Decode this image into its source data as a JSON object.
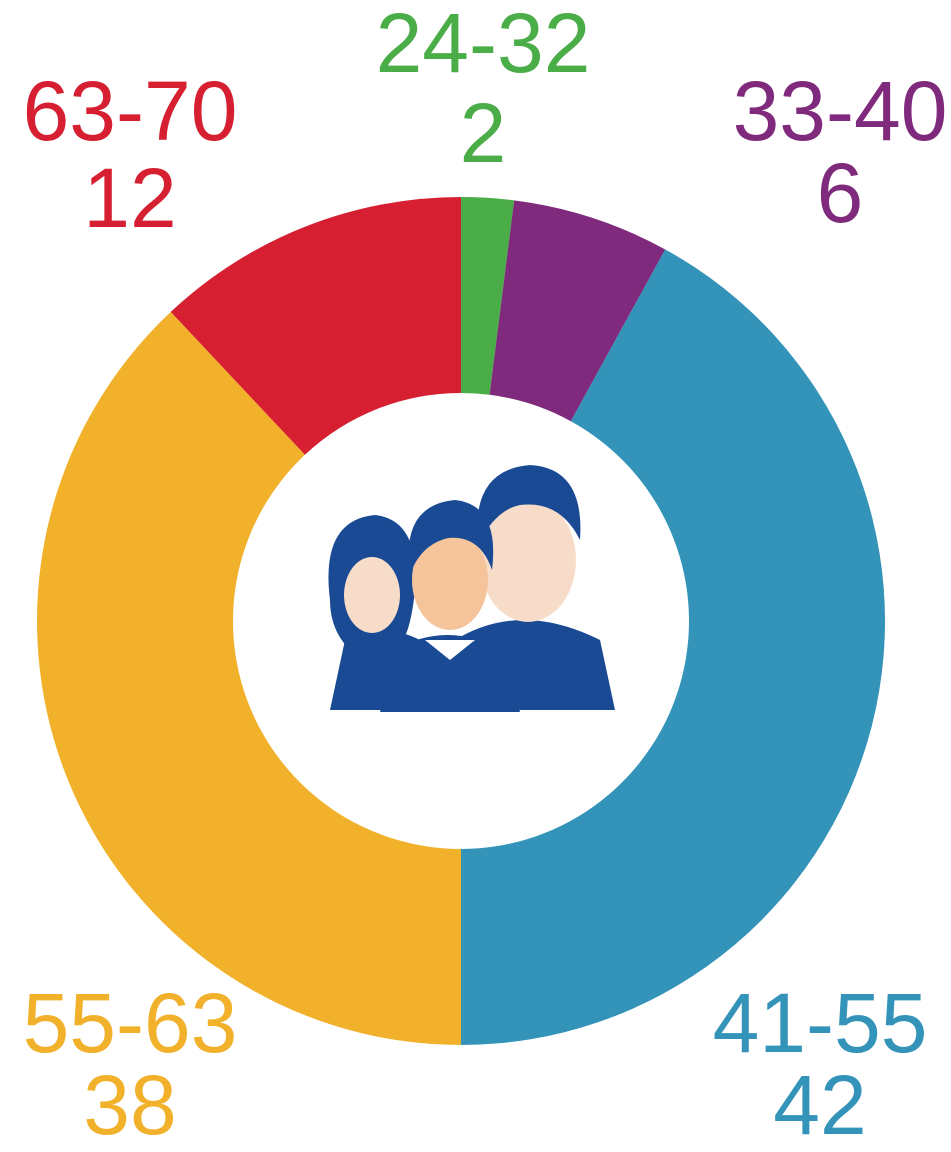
{
  "chart_data": {
    "type": "donut",
    "categories": [
      "24-32",
      "33-40",
      "41-55",
      "55-63",
      "63-70"
    ],
    "values": [
      2,
      6,
      42,
      38,
      12
    ],
    "colors": [
      "#4aad48",
      "#7f2a7c",
      "#3393b8",
      "#f2b12b",
      "#d62032"
    ]
  }
}
